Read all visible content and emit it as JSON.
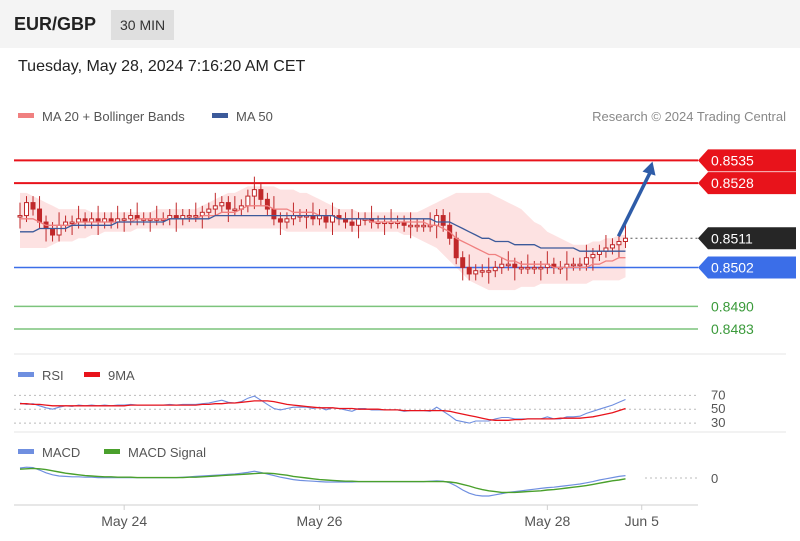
{
  "header": {
    "symbol": "EUR/GBP",
    "timeframe": "30 MIN"
  },
  "datetime": "Tuesday, May 28, 2024 7:16:20 AM CET",
  "credit": "Research © 2024 Trading Central",
  "colors": {
    "resistance": "#e8131b",
    "support": "#3b6ee8",
    "target_green": "#7cc47c",
    "price_box": "#262626",
    "ma20": "#f08080",
    "ma50": "#3c5a9a",
    "bollinger": "#fde2e2",
    "candle": "#c0282a",
    "rsi": "#6f8fe0",
    "rsi_ma": "#e8131b",
    "macd": "#6f8fe0",
    "macd_signal": "#4aa02c",
    "arrow": "#2e5ca8"
  },
  "chart_data": [
    {
      "type": "candlestick",
      "legend": [
        {
          "label": "MA 20 + Bollinger Bands",
          "color": "#f08080"
        },
        {
          "label": "MA 50",
          "color": "#3c5a9a"
        }
      ],
      "ylim": [
        0.8475,
        0.8545
      ],
      "xlim": [
        0,
        96
      ],
      "levels": [
        {
          "value": 0.8535,
          "label": "0.8535",
          "kind": "resistance"
        },
        {
          "value": 0.8528,
          "label": "0.8528",
          "kind": "resistance"
        },
        {
          "value": 0.8511,
          "label": "0.8511",
          "kind": "current"
        },
        {
          "value": 0.8502,
          "label": "0.8502",
          "kind": "support"
        },
        {
          "value": 0.849,
          "label": "0.8490",
          "kind": "target"
        },
        {
          "value": 0.8483,
          "label": "0.8483",
          "kind": "target"
        }
      ],
      "forecast_arrow": {
        "from": [
          91,
          0.8511
        ],
        "to": [
          97,
          0.8534
        ]
      },
      "close": [
        0.8518,
        0.8522,
        0.852,
        0.8516,
        0.8514,
        0.8512,
        0.8515,
        0.8516,
        0.8516,
        0.8517,
        0.8516,
        0.8517,
        0.8516,
        0.8517,
        0.8516,
        0.8517,
        0.8517,
        0.8518,
        0.8517,
        0.8517,
        0.8517,
        0.8517,
        0.8517,
        0.8518,
        0.8517,
        0.8518,
        0.8518,
        0.8518,
        0.8519,
        0.852,
        0.8521,
        0.8522,
        0.852,
        0.852,
        0.8521,
        0.8524,
        0.8526,
        0.8523,
        0.852,
        0.8517,
        0.8516,
        0.8517,
        0.8518,
        0.8518,
        0.8518,
        0.8517,
        0.8518,
        0.8516,
        0.8518,
        0.8517,
        0.8516,
        0.8515,
        0.8517,
        0.8517,
        0.8516,
        0.8516,
        0.8516,
        0.8516,
        0.8516,
        0.8515,
        0.8515,
        0.8515,
        0.8515,
        0.8515,
        0.8518,
        0.8515,
        0.8511,
        0.8505,
        0.8502,
        0.85,
        0.8501,
        0.8501,
        0.8501,
        0.8502,
        0.8503,
        0.8503,
        0.8502,
        0.8502,
        0.8502,
        0.8502,
        0.8502,
        0.8503,
        0.8502,
        0.8502,
        0.8503,
        0.8503,
        0.8503,
        0.8505,
        0.8506,
        0.8507,
        0.8508,
        0.8509,
        0.851,
        0.8511
      ],
      "ma20": [
        0.8517,
        0.8517,
        0.8517,
        0.8516,
        0.8515,
        0.8515,
        0.8515,
        0.8515,
        0.8515,
        0.8516,
        0.8516,
        0.8516,
        0.8516,
        0.8516,
        0.8516,
        0.8516,
        0.8516,
        0.8516,
        0.8517,
        0.8517,
        0.8517,
        0.8517,
        0.8517,
        0.8517,
        0.8517,
        0.8517,
        0.8517,
        0.8517,
        0.8518,
        0.8518,
        0.8518,
        0.8519,
        0.8519,
        0.8519,
        0.852,
        0.8521,
        0.8521,
        0.8521,
        0.8521,
        0.852,
        0.852,
        0.852,
        0.8519,
        0.8519,
        0.8519,
        0.8519,
        0.8518,
        0.8518,
        0.8518,
        0.8517,
        0.8517,
        0.8517,
        0.8517,
        0.8517,
        0.8516,
        0.8516,
        0.8516,
        0.8516,
        0.8516,
        0.8516,
        0.8516,
        0.8516,
        0.8516,
        0.8515,
        0.8515,
        0.8514,
        0.8513,
        0.8511,
        0.851,
        0.8509,
        0.8508,
        0.8507,
        0.8506,
        0.8506,
        0.8505,
        0.8504,
        0.8504,
        0.8503,
        0.8503,
        0.8503,
        0.8503,
        0.8503,
        0.8502,
        0.8502,
        0.8502,
        0.8502,
        0.8502,
        0.8502,
        0.8503,
        0.8503,
        0.8504,
        0.8504,
        0.8505,
        0.8505
      ],
      "ma50": [
        0.8513,
        0.8513,
        0.8513,
        0.8514,
        0.8514,
        0.8514,
        0.8514,
        0.8514,
        0.8515,
        0.8515,
        0.8515,
        0.8515,
        0.8515,
        0.8515,
        0.8515,
        0.8516,
        0.8516,
        0.8516,
        0.8516,
        0.8516,
        0.8516,
        0.8516,
        0.8516,
        0.8517,
        0.8517,
        0.8517,
        0.8517,
        0.8517,
        0.8517,
        0.8517,
        0.8518,
        0.8518,
        0.8518,
        0.8518,
        0.8518,
        0.8518,
        0.8518,
        0.8518,
        0.8518,
        0.8518,
        0.8518,
        0.8518,
        0.8518,
        0.8518,
        0.8518,
        0.8518,
        0.8518,
        0.8518,
        0.8518,
        0.8517,
        0.8517,
        0.8517,
        0.8517,
        0.8517,
        0.8517,
        0.8517,
        0.8517,
        0.8517,
        0.8517,
        0.8517,
        0.8517,
        0.8517,
        0.8517,
        0.8517,
        0.8516,
        0.8516,
        0.8516,
        0.8515,
        0.8514,
        0.8513,
        0.8512,
        0.8511,
        0.8511,
        0.851,
        0.851,
        0.851,
        0.8509,
        0.8509,
        0.8509,
        0.8509,
        0.8508,
        0.8508,
        0.8508,
        0.8508,
        0.8508,
        0.8508,
        0.8507,
        0.8507,
        0.8507,
        0.8507,
        0.8507,
        0.8507,
        0.8507,
        0.8507
      ],
      "bb_upper": [
        0.8525,
        0.8525,
        0.8524,
        0.8523,
        0.8522,
        0.8521,
        0.852,
        0.852,
        0.852,
        0.852,
        0.852,
        0.8519,
        0.8519,
        0.8519,
        0.8519,
        0.8519,
        0.8519,
        0.8519,
        0.8519,
        0.8519,
        0.8519,
        0.852,
        0.852,
        0.852,
        0.852,
        0.852,
        0.852,
        0.852,
        0.8521,
        0.8522,
        0.8523,
        0.8524,
        0.8525,
        0.8525,
        0.8526,
        0.8527,
        0.8527,
        0.8527,
        0.8527,
        0.8527,
        0.8526,
        0.8526,
        0.8526,
        0.8525,
        0.8525,
        0.8524,
        0.8523,
        0.8522,
        0.8521,
        0.852,
        0.852,
        0.852,
        0.8519,
        0.8519,
        0.8519,
        0.8519,
        0.8519,
        0.8519,
        0.8519,
        0.8519,
        0.8519,
        0.8519,
        0.852,
        0.8521,
        0.8522,
        0.8523,
        0.8524,
        0.8525,
        0.8525,
        0.8525,
        0.8525,
        0.8525,
        0.8525,
        0.8524,
        0.8523,
        0.8522,
        0.8521,
        0.852,
        0.8518,
        0.8516,
        0.8515,
        0.8513,
        0.8512,
        0.8511,
        0.851,
        0.8509,
        0.8509,
        0.8509,
        0.851,
        0.851,
        0.8511,
        0.8511,
        0.8512,
        0.8512
      ],
      "bb_lower": [
        0.8508,
        0.8508,
        0.8508,
        0.8508,
        0.8508,
        0.8509,
        0.851,
        0.851,
        0.851,
        0.8511,
        0.8511,
        0.8512,
        0.8512,
        0.8513,
        0.8513,
        0.8513,
        0.8513,
        0.8513,
        0.8514,
        0.8514,
        0.8514,
        0.8514,
        0.8514,
        0.8514,
        0.8514,
        0.8514,
        0.8514,
        0.8514,
        0.8514,
        0.8514,
        0.8514,
        0.8514,
        0.8514,
        0.8514,
        0.8514,
        0.8514,
        0.8514,
        0.8514,
        0.8514,
        0.8514,
        0.8514,
        0.8513,
        0.8513,
        0.8513,
        0.8513,
        0.8513,
        0.8513,
        0.8513,
        0.8513,
        0.8513,
        0.8513,
        0.8513,
        0.8513,
        0.8513,
        0.8513,
        0.8513,
        0.8513,
        0.8513,
        0.8513,
        0.8512,
        0.8512,
        0.8511,
        0.851,
        0.8509,
        0.8508,
        0.8506,
        0.8504,
        0.8502,
        0.85,
        0.8498,
        0.8497,
        0.8496,
        0.8495,
        0.8495,
        0.8495,
        0.8495,
        0.8495,
        0.8496,
        0.8496,
        0.8496,
        0.8497,
        0.8497,
        0.8497,
        0.8497,
        0.8497,
        0.8497,
        0.8497,
        0.8497,
        0.8498,
        0.8498,
        0.8498,
        0.8498,
        0.8498,
        0.8499
      ]
    },
    {
      "type": "line",
      "legend": [
        {
          "label": "RSI",
          "color": "#6f8fe0"
        },
        {
          "label": "9MA",
          "color": "#e8131b"
        }
      ],
      "ylim": [
        20,
        85
      ],
      "xlim": [
        0,
        96
      ],
      "level_lines": [
        {
          "value": 70,
          "label": "70"
        },
        {
          "value": 50,
          "label": "50"
        },
        {
          "value": 30,
          "label": "30"
        }
      ],
      "series": [
        {
          "name": "RSI",
          "values": [
            59,
            57,
            58,
            55,
            52,
            50,
            53,
            55,
            54,
            56,
            55,
            56,
            55,
            56,
            55,
            56,
            56,
            57,
            56,
            56,
            56,
            56,
            56,
            57,
            56,
            57,
            57,
            57,
            58,
            59,
            61,
            63,
            60,
            59,
            61,
            66,
            69,
            63,
            57,
            51,
            49,
            51,
            53,
            53,
            53,
            51,
            53,
            49,
            52,
            51,
            49,
            47,
            51,
            51,
            49,
            49,
            49,
            49,
            49,
            47,
            48,
            48,
            48,
            47,
            53,
            47,
            41,
            34,
            32,
            30,
            33,
            33,
            33,
            36,
            38,
            38,
            36,
            36,
            36,
            36,
            36,
            39,
            36,
            36,
            39,
            39,
            40,
            44,
            47,
            50,
            53,
            56,
            60,
            64
          ]
        },
        {
          "name": "9MA",
          "values": [
            58,
            58,
            57,
            57,
            56,
            55,
            55,
            55,
            55,
            55,
            55,
            55,
            55,
            55,
            55,
            55,
            55,
            56,
            56,
            56,
            56,
            56,
            56,
            56,
            56,
            56,
            56,
            56,
            57,
            57,
            58,
            58,
            59,
            59,
            60,
            61,
            62,
            62,
            62,
            61,
            59,
            57,
            56,
            55,
            54,
            53,
            52,
            52,
            52,
            51,
            51,
            51,
            50,
            50,
            50,
            50,
            49,
            49,
            49,
            48,
            48,
            48,
            48,
            48,
            48,
            48,
            47,
            45,
            43,
            41,
            39,
            37,
            35,
            34,
            34,
            34,
            35,
            35,
            36,
            36,
            36,
            36,
            36,
            37,
            37,
            37,
            37,
            38,
            39,
            41,
            43,
            45,
            48,
            51
          ]
        }
      ]
    },
    {
      "type": "line",
      "legend": [
        {
          "label": "MACD",
          "color": "#6f8fe0"
        },
        {
          "label": "MACD Signal",
          "color": "#4aa02c"
        }
      ],
      "ylim": [
        -0.0006,
        0.0004
      ],
      "xlim": [
        0,
        96
      ],
      "level_lines": [
        {
          "value": 0,
          "label": "0"
        }
      ],
      "series": [
        {
          "name": "MACD",
          "values": [
            0.00025,
            0.00027,
            0.00026,
            0.0002,
            0.00013,
            8e-05,
            5e-05,
            4e-05,
            3e-05,
            3e-05,
            2e-05,
            2e-05,
            1e-05,
            1e-05,
            1e-05,
            1e-05,
            1e-05,
            1e-05,
            1e-05,
            1e-05,
            1e-05,
            1e-05,
            1e-05,
            1e-05,
            1e-05,
            2e-05,
            3e-05,
            4e-05,
            5e-05,
            6e-05,
            7e-05,
            8e-05,
            9e-05,
            0.0001,
            0.00012,
            0.00014,
            0.00017,
            0.00014,
            0.0001,
            6e-05,
            2e-05,
            -1e-05,
            -4e-05,
            -6e-05,
            -7e-05,
            -8e-05,
            -9e-05,
            -0.0001,
            -0.0001,
            -0.0001,
            -0.0001,
            -0.0001,
            -9e-05,
            -9e-05,
            -9e-05,
            -9e-05,
            -9e-05,
            -9e-05,
            -9e-05,
            -9e-05,
            -9e-05,
            -9e-05,
            -9e-05,
            -8e-05,
            -7e-05,
            -8e-05,
            -0.00012,
            -0.0002,
            -0.0003,
            -0.00038,
            -0.00043,
            -0.00045,
            -0.00045,
            -0.00042,
            -0.00039,
            -0.00036,
            -0.00034,
            -0.00032,
            -0.0003,
            -0.00028,
            -0.00026,
            -0.00024,
            -0.00023,
            -0.00021,
            -0.00019,
            -0.00017,
            -0.00015,
            -0.00012,
            -9e-05,
            -5e-05,
            -2e-05,
            1e-05,
            4e-05,
            6e-05
          ]
        },
        {
          "name": "MACD Signal",
          "values": [
            0.00022,
            0.00023,
            0.00024,
            0.00023,
            0.00021,
            0.00018,
            0.00015,
            0.00012,
            0.0001,
            8e-05,
            6e-05,
            5e-05,
            4e-05,
            3e-05,
            3e-05,
            2e-05,
            2e-05,
            2e-05,
            1e-05,
            1e-05,
            1e-05,
            1e-05,
            1e-05,
            1e-05,
            1e-05,
            1e-05,
            2e-05,
            2e-05,
            3e-05,
            4e-05,
            5e-05,
            6e-05,
            7e-05,
            8e-05,
            9e-05,
            0.0001,
            0.00011,
            0.00012,
            0.00012,
            0.00011,
            9e-05,
            7e-05,
            4e-05,
            2e-05,
            0.0,
            -2e-05,
            -4e-05,
            -5e-05,
            -6e-05,
            -7e-05,
            -8e-05,
            -8e-05,
            -9e-05,
            -9e-05,
            -9e-05,
            -9e-05,
            -9e-05,
            -9e-05,
            -9e-05,
            -9e-05,
            -9e-05,
            -9e-05,
            -9e-05,
            -9e-05,
            -9e-05,
            -9e-05,
            -0.0001,
            -0.00012,
            -0.00016,
            -0.0002,
            -0.00025,
            -0.00029,
            -0.00032,
            -0.00034,
            -0.00036,
            -0.00036,
            -0.00036,
            -0.00035,
            -0.00034,
            -0.00033,
            -0.00032,
            -0.0003,
            -0.00029,
            -0.00027,
            -0.00025,
            -0.00023,
            -0.00021,
            -0.00019,
            -0.00016,
            -0.00013,
            -0.0001,
            -7e-05,
            -5e-05,
            -2e-05
          ]
        }
      ]
    }
  ],
  "x_axis": {
    "ticks": [
      {
        "label": "May 24",
        "index": 16
      },
      {
        "label": "May 26",
        "index": 46
      },
      {
        "label": "May 28",
        "index": 81
      },
      {
        "label": "Jun 5",
        "index": 95.5
      }
    ]
  }
}
